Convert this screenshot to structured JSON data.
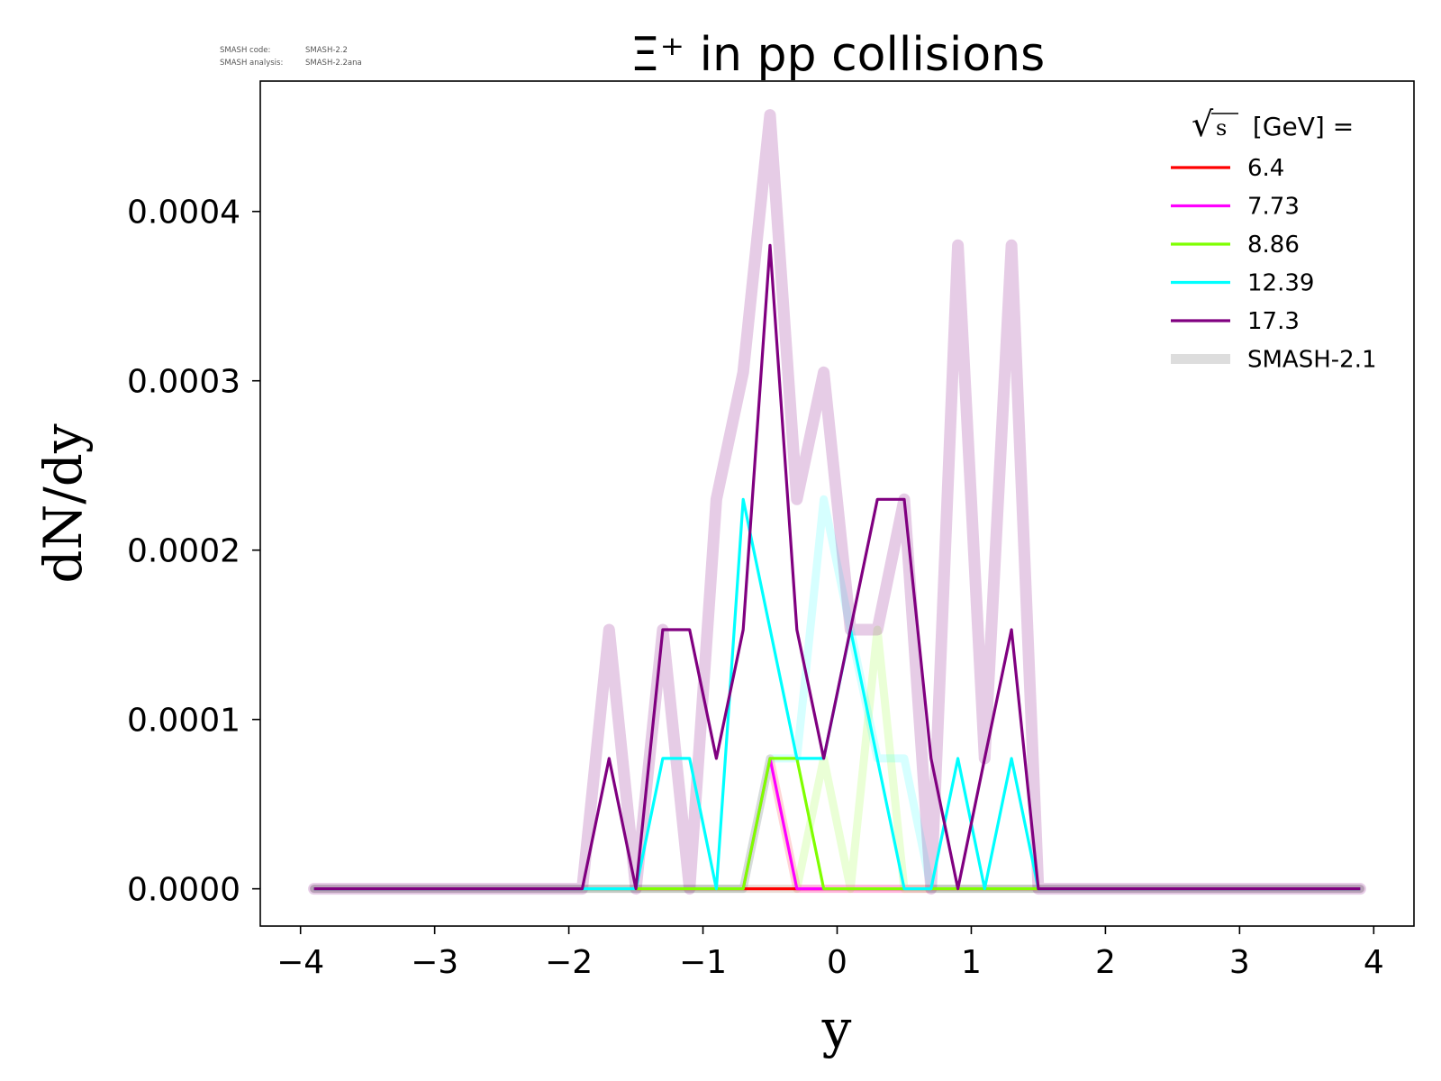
{
  "chart_data": {
    "type": "line",
    "title": "Ξ⁺ in pp collisions",
    "xlabel": "y",
    "ylabel": "dN/dy",
    "xlim": [
      -4.3,
      4.3
    ],
    "ylim": [
      -2.2e-05,
      0.000477
    ],
    "xticks": [
      -4,
      -3,
      -2,
      -1,
      0,
      1,
      2,
      3,
      4
    ],
    "xtick_labels": [
      "−4",
      "−3",
      "−2",
      "−1",
      "0",
      "1",
      "2",
      "3",
      "4"
    ],
    "yticks": [
      0,
      0.0001,
      0.0002,
      0.0003,
      0.0004
    ],
    "ytick_labels": [
      "0.0000",
      "0.0001",
      "0.0002",
      "0.0003",
      "0.0004"
    ],
    "grid": false,
    "legend_placement": "top-right",
    "legend_title": {
      "sqrt_symbol": "√",
      "s_symbol": "s",
      "text": " [GeV] ="
    },
    "meta": {
      "code_label": "SMASH code:",
      "code_value": "SMASH-2.2",
      "analysis_label": "SMASH analysis:",
      "analysis_value": "SMASH-2.2ana"
    },
    "series": [
      {
        "name": "6.4",
        "color": "#ff0000",
        "x": [
          -3.9,
          -1.9,
          -0.7,
          -0.5,
          -0.3,
          3.9
        ],
        "y": [
          0,
          0,
          0,
          0,
          0,
          0
        ],
        "ref_x": [
          -3.9,
          -1.9,
          -0.7,
          -0.5,
          -0.3,
          3.9
        ],
        "ref_y": [
          0,
          0,
          0,
          7.7e-05,
          0,
          0
        ]
      },
      {
        "name": "7.73",
        "color": "#ff00ff",
        "x": [
          -3.9,
          -0.9,
          -0.7,
          -0.5,
          -0.3,
          3.9
        ],
        "y": [
          0,
          0,
          0,
          7.7e-05,
          0,
          0
        ],
        "ref_x": [
          -3.9,
          3.9
        ],
        "ref_y": [
          0,
          0
        ]
      },
      {
        "name": "8.86",
        "color": "#7fff00",
        "x": [
          -3.9,
          -0.7,
          -0.5,
          -0.3,
          -0.1,
          3.9
        ],
        "y": [
          0,
          0,
          7.7e-05,
          7.7e-05,
          0,
          0
        ],
        "ref_x": [
          -3.9,
          -0.3,
          -0.1,
          0.1,
          0.3,
          0.5,
          3.9
        ],
        "ref_y": [
          0,
          0,
          7.7e-05,
          0,
          0.000153,
          0,
          0
        ]
      },
      {
        "name": "12.39",
        "color": "#00ffff",
        "x": [
          -3.9,
          -1.5,
          -1.3,
          -1.1,
          -0.9,
          -0.7,
          -0.3,
          -0.1,
          0.1,
          0.5,
          0.7,
          0.9,
          1.1,
          1.3,
          1.5,
          3.9
        ],
        "y": [
          0,
          0,
          7.7e-05,
          7.7e-05,
          0,
          0.00023,
          7.7e-05,
          7.7e-05,
          0.000153,
          0,
          0,
          7.7e-05,
          0,
          7.7e-05,
          0,
          0
        ],
        "ref_x": [
          -3.9,
          -0.7,
          -0.5,
          -0.3,
          -0.1,
          0.1,
          0.3,
          0.5,
          0.7,
          3.9
        ],
        "ref_y": [
          0,
          0,
          7.7e-05,
          7.7e-05,
          0.00023,
          0.000153,
          7.7e-05,
          7.7e-05,
          0,
          0
        ]
      },
      {
        "name": "17.3",
        "color": "#800080",
        "x": [
          -3.9,
          -1.9,
          -1.7,
          -1.5,
          -1.3,
          -1.1,
          -0.9,
          -0.7,
          -0.5,
          -0.3,
          -0.1,
          0.3,
          0.5,
          0.7,
          0.9,
          1.1,
          1.3,
          1.5,
          3.9
        ],
        "y": [
          0,
          0,
          7.7e-05,
          0,
          0.000153,
          0.000153,
          7.7e-05,
          0.000153,
          0.00038,
          0.000153,
          7.7e-05,
          0.00023,
          0.00023,
          7.7e-05,
          0,
          7.7e-05,
          0.000153,
          0,
          0
        ],
        "ref_x": [
          -3.9,
          -1.9,
          -1.7,
          -1.5,
          -1.3,
          -1.1,
          -0.9,
          -0.7,
          -0.5,
          -0.3,
          -0.1,
          0.1,
          0.3,
          0.5,
          0.7,
          0.9,
          1.1,
          1.3,
          1.5,
          3.9
        ],
        "ref_y": [
          0,
          0,
          0.000153,
          0,
          0.000153,
          0,
          0.00023,
          0.000305,
          0.000457,
          0.00023,
          0.000305,
          0.000153,
          0.000153,
          0.00023,
          0,
          0.00038,
          7.7e-05,
          0.00038,
          0,
          0
        ]
      }
    ],
    "reference_series": {
      "name": "SMASH-2.1",
      "color": "#dddddd"
    }
  }
}
